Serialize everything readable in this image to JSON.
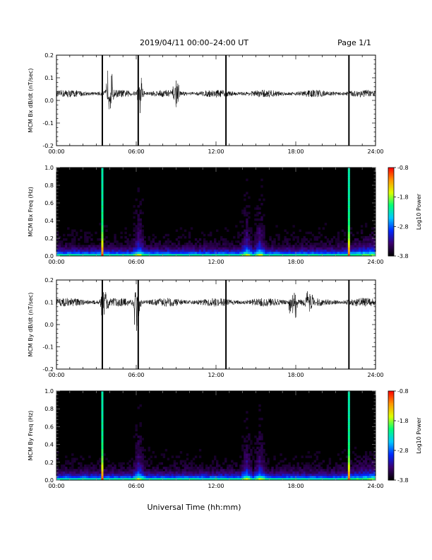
{
  "header": {
    "title": "2019/04/11  00:00–24:00 UT",
    "page": "Page 1/1"
  },
  "xlabel": "Universal Time (hh:mm)",
  "chart_data": [
    {
      "type": "line",
      "ylabel": "MCM Bx dB/dt (nT/sec)",
      "xlim": [
        0,
        24
      ],
      "ylim": [
        -0.2,
        0.2
      ],
      "xticks": [
        "00:00",
        "06:00",
        "12:00",
        "18:00",
        "24:00"
      ],
      "yticks": [
        "-0.2",
        "-0.1",
        "0.0",
        "0.1",
        "0.2"
      ],
      "baseline": 0.03,
      "noise": 0.012,
      "spikes_hours": [
        3.45,
        6.15,
        12.75,
        22.0
      ],
      "bursts": [
        {
          "hour": 4.0,
          "amp_up": 0.16,
          "amp_down": 0.08
        },
        {
          "hour": 6.3,
          "amp_up": 0.1,
          "amp_down": 0.1
        },
        {
          "hour": 9.0,
          "amp_up": 0.06,
          "amp_down": 0.05
        }
      ]
    },
    {
      "type": "heatmap",
      "ylabel": "MCM Bx Freq (Hz)",
      "xlim": [
        0,
        24
      ],
      "ylim": [
        0.0,
        1.0
      ],
      "xticks": [
        "00:00",
        "06:00",
        "12:00",
        "18:00",
        "24:00"
      ],
      "yticks": [
        "0.0",
        "0.2",
        "0.4",
        "0.6",
        "0.8",
        "1.0"
      ],
      "colorbar": {
        "label": "Log10 Power",
        "min": -3.8,
        "max": -0.8,
        "ticks": [
          "-0.8",
          "-1.8",
          "-2.8",
          "-3.8"
        ]
      },
      "bright_columns_hours": [
        3.45,
        22.0
      ],
      "active_hours": [
        6.2,
        14.3,
        15.3
      ]
    },
    {
      "type": "line",
      "ylabel": "MCM By dB/dt (nT/sec)",
      "xlim": [
        0,
        24
      ],
      "ylim": [
        -0.2,
        0.2
      ],
      "xticks": [
        "00:00",
        "06:00",
        "12:00",
        "18:00",
        "24:00"
      ],
      "yticks": [
        "-0.2",
        "-0.1",
        "0.0",
        "0.1",
        "0.2"
      ],
      "baseline": 0.1,
      "noise": 0.014,
      "spikes_hours": [
        3.45,
        6.15,
        12.75,
        22.0
      ],
      "bursts": [
        {
          "hour": 3.6,
          "amp_up": 0.06,
          "amp_down": 0.12
        },
        {
          "hour": 6.1,
          "amp_up": 0.1,
          "amp_down": 0.27
        },
        {
          "hour": 17.8,
          "amp_up": 0.05,
          "amp_down": 0.2
        },
        {
          "hour": 19.0,
          "amp_up": 0.07,
          "amp_down": 0.06
        }
      ]
    },
    {
      "type": "heatmap",
      "ylabel": "MCM By Freq (Hz)",
      "xlim": [
        0,
        24
      ],
      "ylim": [
        0.0,
        1.0
      ],
      "xticks": [
        "00:00",
        "06:00",
        "12:00",
        "18:00",
        "24:00"
      ],
      "yticks": [
        "0.0",
        "0.2",
        "0.4",
        "0.6",
        "0.8",
        "1.0"
      ],
      "colorbar": {
        "label": "Log10 Power",
        "min": -3.8,
        "max": -0.8,
        "ticks": [
          "-0.8",
          "-1.8",
          "-2.8",
          "-3.8"
        ]
      },
      "bright_columns_hours": [
        3.45,
        22.0
      ],
      "active_hours": [
        6.2,
        14.3,
        15.3
      ]
    }
  ]
}
